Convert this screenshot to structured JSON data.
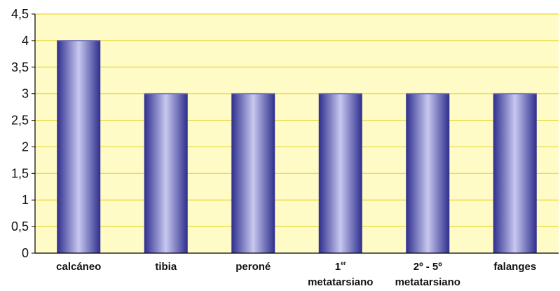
{
  "chart_data": {
    "type": "bar",
    "title": "",
    "xlabel": "",
    "ylabel": "",
    "ylim": [
      0,
      4.5
    ],
    "yticks": [
      "0",
      "0,5",
      "1",
      "1,5",
      "2",
      "2,5",
      "3",
      "3,5",
      "4",
      "4,5"
    ],
    "categories": [
      {
        "line1": "calcáneo",
        "sup": "",
        "line2": ""
      },
      {
        "line1": "tibia",
        "sup": "",
        "line2": ""
      },
      {
        "line1": "peroné",
        "sup": "",
        "line2": ""
      },
      {
        "line1": "1",
        "sup": "er",
        "line2": "metatarsiano"
      },
      {
        "line1": "2º - 5º",
        "sup": "",
        "line2": "metatarsiano"
      },
      {
        "line1": "falanges",
        "sup": "",
        "line2": ""
      }
    ],
    "values": [
      4,
      3,
      3,
      3,
      3,
      3
    ],
    "grid": true,
    "legend": "none",
    "colors": {
      "plot_background": "#FFFBC6",
      "grid": "#E8D83A",
      "bar_edge": "#2E2E8E",
      "bar_center": "#C8C8F0",
      "axis": "#000000"
    }
  }
}
